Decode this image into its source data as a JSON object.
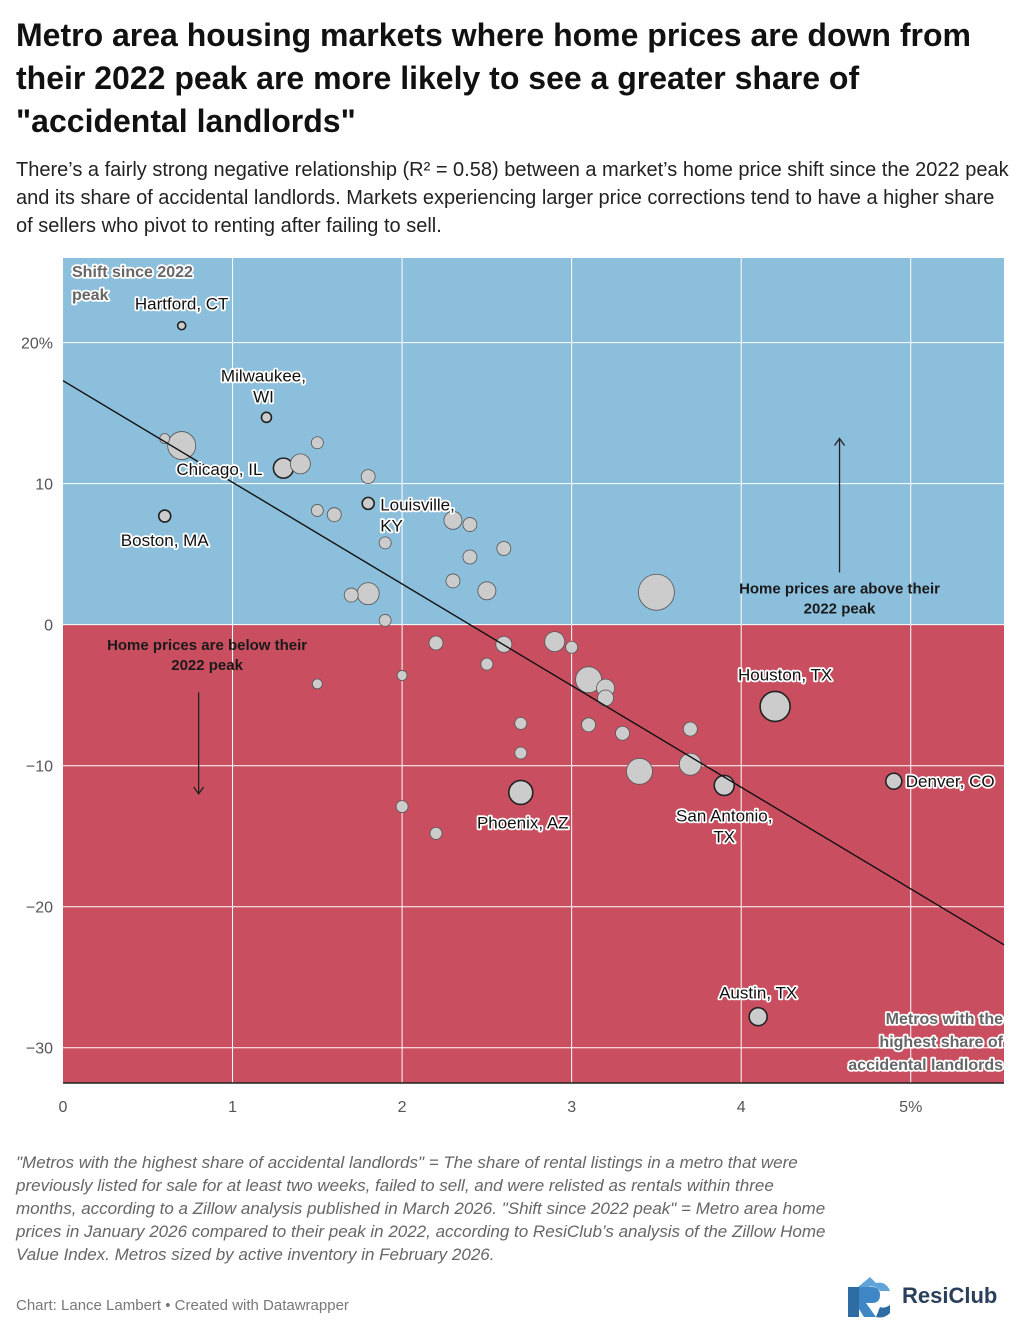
{
  "header": {
    "title": "Metro area housing markets where home prices are down from their 2022 peak are more likely to see a greater share of \"accidental landlords\"",
    "subtitle": "There’s a fairly strong negative relationship (R² = 0.58) between a market’s home price shift since the 2022 peak and its share of accidental landlords. Markets experiencing larger price corrections tend to have a higher share of sellers who pivot to renting after failing to sell."
  },
  "chart_data": {
    "type": "scatter",
    "title": "",
    "xlabel": "Metros with the highest share of accidental landlords",
    "ylabel": "Shift since 2022 peak",
    "xlim": [
      0,
      5.55
    ],
    "ylim": [
      -32.5,
      26
    ],
    "x_ticks": [
      {
        "value": 0,
        "label": "0"
      },
      {
        "value": 1,
        "label": "1"
      },
      {
        "value": 2,
        "label": "2"
      },
      {
        "value": 3,
        "label": "3"
      },
      {
        "value": 4,
        "label": "4"
      },
      {
        "value": 5,
        "label": "5%"
      }
    ],
    "y_ticks": [
      {
        "value": 20,
        "label": "20%"
      },
      {
        "value": 10,
        "label": "10"
      },
      {
        "value": 0,
        "label": "0"
      },
      {
        "value": -10,
        "label": "−10"
      },
      {
        "value": -20,
        "label": "−20"
      },
      {
        "value": -30,
        "label": "−30"
      }
    ],
    "grid": true,
    "colors": {
      "above": "#8cbfdc",
      "below": "#c94f60",
      "point": "#cccccc",
      "point_stroke": "#3a3a3a",
      "grid": "#ffffff",
      "trend": "#111111"
    },
    "trendline": {
      "x": [
        0,
        5.55
      ],
      "y": [
        17.3,
        -22.7
      ]
    },
    "annotations": [
      {
        "text": "Home prices are above their 2022 peak",
        "arrow": "up"
      },
      {
        "text": "Home prices are below their 2022 peak",
        "arrow": "down"
      }
    ],
    "points": [
      {
        "label": "Hartford, CT",
        "x": 0.7,
        "y": 21.2,
        "size": 4
      },
      {
        "label": "Milwaukee, WI",
        "x": 1.2,
        "y": 14.7,
        "size": 5
      },
      {
        "label": "Chicago, IL",
        "x": 1.3,
        "y": 11.1,
        "size": 10
      },
      {
        "label": "Boston, MA",
        "x": 0.6,
        "y": 7.7,
        "size": 6
      },
      {
        "label": "Louisville, KY",
        "x": 1.8,
        "y": 8.6,
        "size": 6
      },
      {
        "label": "Houston, TX",
        "x": 4.2,
        "y": -5.8,
        "size": 15
      },
      {
        "label": "San Antonio, TX",
        "x": 3.9,
        "y": -11.4,
        "size": 10
      },
      {
        "label": "Denver, CO",
        "x": 4.9,
        "y": -11.1,
        "size": 8
      },
      {
        "label": "Phoenix, AZ",
        "x": 2.7,
        "y": -11.9,
        "size": 12
      },
      {
        "label": "Austin, TX",
        "x": 4.1,
        "y": -27.8,
        "size": 9
      },
      {
        "label": "",
        "x": 0.6,
        "y": 13.2,
        "size": 5
      },
      {
        "label": "",
        "x": 0.7,
        "y": 12.7,
        "size": 14
      },
      {
        "label": "",
        "x": 0.8,
        "y": 11.0,
        "size": 5
      },
      {
        "label": "",
        "x": 1.4,
        "y": 11.4,
        "size": 10
      },
      {
        "label": "",
        "x": 1.5,
        "y": 12.9,
        "size": 6
      },
      {
        "label": "",
        "x": 1.5,
        "y": 8.1,
        "size": 6
      },
      {
        "label": "",
        "x": 1.6,
        "y": 7.8,
        "size": 7
      },
      {
        "label": "",
        "x": 1.8,
        "y": 10.5,
        "size": 7
      },
      {
        "label": "",
        "x": 1.9,
        "y": 5.8,
        "size": 6
      },
      {
        "label": "",
        "x": 2.3,
        "y": 7.4,
        "size": 9
      },
      {
        "label": "",
        "x": 2.4,
        "y": 7.1,
        "size": 7
      },
      {
        "label": "",
        "x": 2.4,
        "y": 4.8,
        "size": 7
      },
      {
        "label": "",
        "x": 2.6,
        "y": 5.4,
        "size": 7
      },
      {
        "label": "",
        "x": 2.3,
        "y": 3.1,
        "size": 7
      },
      {
        "label": "",
        "x": 2.5,
        "y": 2.4,
        "size": 9
      },
      {
        "label": "",
        "x": 1.7,
        "y": 2.1,
        "size": 7
      },
      {
        "label": "",
        "x": 1.8,
        "y": 2.2,
        "size": 11
      },
      {
        "label": "",
        "x": 1.9,
        "y": 0.3,
        "size": 6
      },
      {
        "label": "",
        "x": 3.5,
        "y": 2.3,
        "size": 18
      },
      {
        "label": "",
        "x": 2.2,
        "y": -1.3,
        "size": 7
      },
      {
        "label": "",
        "x": 2.6,
        "y": -1.4,
        "size": 8
      },
      {
        "label": "",
        "x": 2.9,
        "y": -1.2,
        "size": 10
      },
      {
        "label": "",
        "x": 3.0,
        "y": -1.6,
        "size": 6
      },
      {
        "label": "",
        "x": 2.5,
        "y": -2.8,
        "size": 6
      },
      {
        "label": "",
        "x": 2.0,
        "y": -3.6,
        "size": 5
      },
      {
        "label": "",
        "x": 1.5,
        "y": -4.2,
        "size": 5
      },
      {
        "label": "",
        "x": 3.1,
        "y": -3.9,
        "size": 13
      },
      {
        "label": "",
        "x": 3.2,
        "y": -4.5,
        "size": 9
      },
      {
        "label": "",
        "x": 3.2,
        "y": -5.2,
        "size": 8
      },
      {
        "label": "",
        "x": 2.7,
        "y": -7.0,
        "size": 6
      },
      {
        "label": "",
        "x": 3.1,
        "y": -7.1,
        "size": 7
      },
      {
        "label": "",
        "x": 3.3,
        "y": -7.7,
        "size": 7
      },
      {
        "label": "",
        "x": 3.7,
        "y": -7.4,
        "size": 7
      },
      {
        "label": "",
        "x": 2.7,
        "y": -9.1,
        "size": 6
      },
      {
        "label": "",
        "x": 3.4,
        "y": -10.4,
        "size": 13
      },
      {
        "label": "",
        "x": 3.7,
        "y": -9.9,
        "size": 11
      },
      {
        "label": "",
        "x": 2.0,
        "y": -12.9,
        "size": 6
      },
      {
        "label": "",
        "x": 2.2,
        "y": -14.8,
        "size": 6
      }
    ]
  },
  "footer": {
    "note": "\"Metros with the highest share of accidental landlords\" = The share of rental listings in a metro that were previously listed for sale for at least two weeks, failed to sell, and were relisted as rentals within three months, according to a Zillow analysis published in March 2026. \"Shift since 2022 peak\" = Metro area home prices in January 2026 compared to their peak in 2022, according to ResiClub’s analysis of the Zillow Home Value Index. Metros sized by active inventory in February 2026.",
    "credit": "Chart: Lance Lambert • Created with Datawrapper",
    "logo_text": "ResiClub"
  }
}
